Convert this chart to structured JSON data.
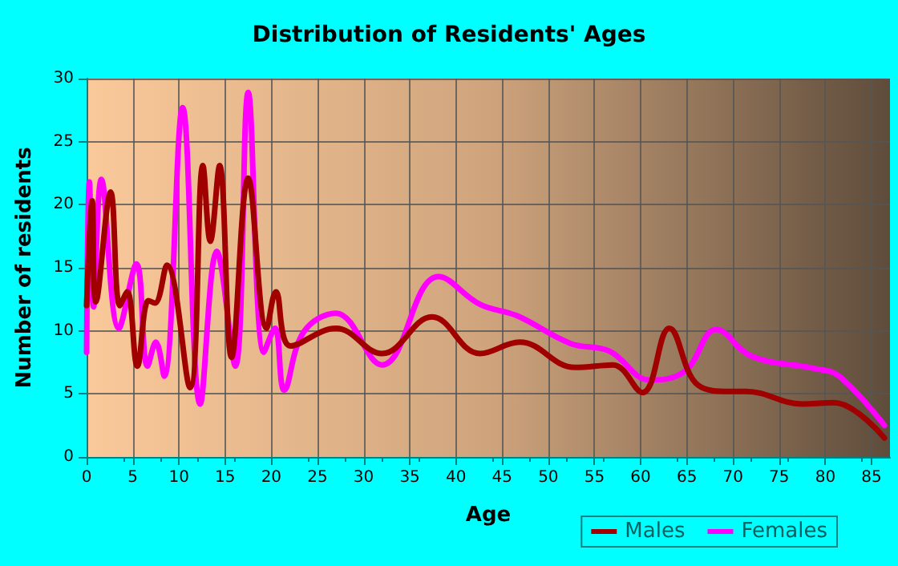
{
  "chart_data": {
    "type": "line",
    "title": "Distribution of Residents' Ages",
    "xlabel": "Age",
    "ylabel": "Number of residents",
    "xlim": [
      0,
      87
    ],
    "xticks": [
      0,
      5,
      10,
      15,
      20,
      25,
      30,
      35,
      40,
      45,
      50,
      55,
      60,
      65,
      70,
      75,
      80,
      85
    ],
    "ylim": [
      0,
      30
    ],
    "yticks": [
      0,
      5,
      10,
      15,
      20,
      25,
      30
    ],
    "series": [
      {
        "name": "Males",
        "color": "#a00000",
        "x": [
          0,
          0.6,
          1,
          2.6,
          3.6,
          4.4,
          5.5,
          6.7,
          7.4,
          8.7,
          11.2,
          12.6,
          13.4,
          14.4,
          15.7,
          17.5,
          19.5,
          20.5,
          22.1,
          27,
          32,
          37.4,
          42.6,
          46.9,
          52.9,
          57,
          60.2,
          63.1,
          66.2,
          69.7,
          71.4,
          77.5,
          80.9,
          86.4
        ],
        "values": [
          12,
          20.3,
          12.3,
          21,
          12,
          13.1,
          7.2,
          12.4,
          12.2,
          15.2,
          5.5,
          23.1,
          17.1,
          23.1,
          7.9,
          22.1,
          10.2,
          13.1,
          8.8,
          10.2,
          8.2,
          11.1,
          8.2,
          9.1,
          7.1,
          7.3,
          5.1,
          10.2,
          5.7,
          5.2,
          5.2,
          4.2,
          4.3,
          1.5
        ]
      },
      {
        "name": "Females",
        "color": "#ff00ff",
        "x": [
          0,
          0.3,
          0.75,
          1.6,
          3.5,
          5.4,
          6.6,
          7.5,
          8.4,
          10.4,
          12.3,
          14.1,
          16.1,
          17.5,
          19.2,
          20.4,
          21.4,
          23.5,
          27,
          32,
          38.1,
          42.6,
          46.6,
          52.4,
          56.6,
          61,
          64.8,
          68.2,
          72,
          78.9,
          81.5,
          86.4
        ],
        "values": [
          8.3,
          21.8,
          11.9,
          22,
          10.2,
          15.3,
          7.2,
          9.1,
          6.4,
          27.7,
          4.2,
          16.3,
          7.2,
          28.9,
          8.3,
          10.2,
          5.3,
          9.9,
          11.4,
          7.3,
          14.3,
          12.1,
          11.2,
          9,
          8.4,
          6.1,
          6.8,
          10.1,
          8,
          7,
          6.4,
          2.5
        ]
      }
    ],
    "grid": true,
    "legend": "bottom right",
    "marker": "none",
    "line_style": "solid"
  }
}
